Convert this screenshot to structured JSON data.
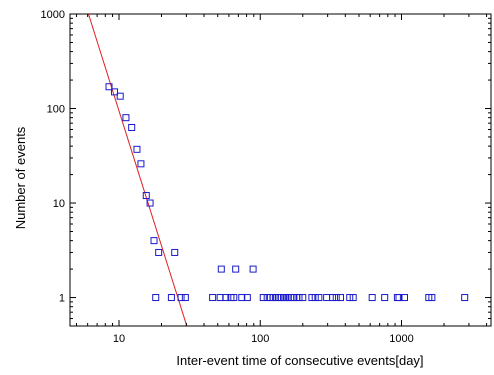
{
  "chart_data": {
    "type": "scatter",
    "title": "",
    "xlabel": "Inter-event time of consecutive events[day]",
    "ylabel": "Number of events",
    "xscale": "log",
    "yscale": "log",
    "xlim": [
      4.5,
      4300
    ],
    "ylim": [
      0.5,
      1000
    ],
    "x_ticks": [
      {
        "value": 10,
        "label": "10"
      },
      {
        "value": 100,
        "label": "100"
      },
      {
        "value": 1000,
        "label": "1000"
      }
    ],
    "y_ticks": [
      {
        "value": 1,
        "label": "1"
      },
      {
        "value": 10,
        "label": "10"
      },
      {
        "value": 100,
        "label": "100"
      },
      {
        "value": 1000,
        "label": "1000"
      }
    ],
    "grid": false,
    "legend": "none",
    "series": [
      {
        "marker": "square",
        "color": "#1a1acc",
        "points": [
          [
            8.5,
            170
          ],
          [
            9.3,
            150
          ],
          [
            10.2,
            135
          ],
          [
            11.2,
            80
          ],
          [
            12.3,
            63
          ],
          [
            13.4,
            37
          ],
          [
            14.3,
            26
          ],
          [
            15.6,
            12
          ],
          [
            16.6,
            10
          ],
          [
            17.7,
            4
          ],
          [
            19.1,
            3
          ],
          [
            24.8,
            3
          ],
          [
            18.2,
            1
          ],
          [
            23.5,
            1
          ],
          [
            27.5,
            1
          ],
          [
            29.5,
            1
          ],
          [
            46,
            1
          ],
          [
            52,
            1
          ],
          [
            57,
            1
          ],
          [
            62,
            1
          ],
          [
            65,
            1
          ],
          [
            74,
            1
          ],
          [
            81,
            1
          ],
          [
            105,
            1
          ],
          [
            112,
            1
          ],
          [
            118,
            1
          ],
          [
            123,
            1
          ],
          [
            128,
            1
          ],
          [
            134,
            1
          ],
          [
            140,
            1
          ],
          [
            146,
            1
          ],
          [
            152,
            1
          ],
          [
            158,
            1
          ],
          [
            165,
            1
          ],
          [
            173,
            1
          ],
          [
            181,
            1
          ],
          [
            188,
            1
          ],
          [
            200,
            1
          ],
          [
            232,
            1
          ],
          [
            245,
            1
          ],
          [
            260,
            1
          ],
          [
            295,
            1
          ],
          [
            325,
            1
          ],
          [
            345,
            1
          ],
          [
            370,
            1
          ],
          [
            430,
            1
          ],
          [
            455,
            1
          ],
          [
            620,
            1
          ],
          [
            760,
            1
          ],
          [
            935,
            1
          ],
          [
            960,
            1
          ],
          [
            1050,
            1
          ],
          [
            1560,
            1
          ],
          [
            1640,
            1
          ],
          [
            2800,
            1
          ],
          [
            53,
            2
          ],
          [
            67,
            2
          ],
          [
            89,
            2
          ]
        ]
      }
    ],
    "fit_line": {
      "color": "#e02020",
      "points": [
        [
          6.08,
          1000
        ],
        [
          30.2,
          0.5
        ]
      ]
    }
  }
}
